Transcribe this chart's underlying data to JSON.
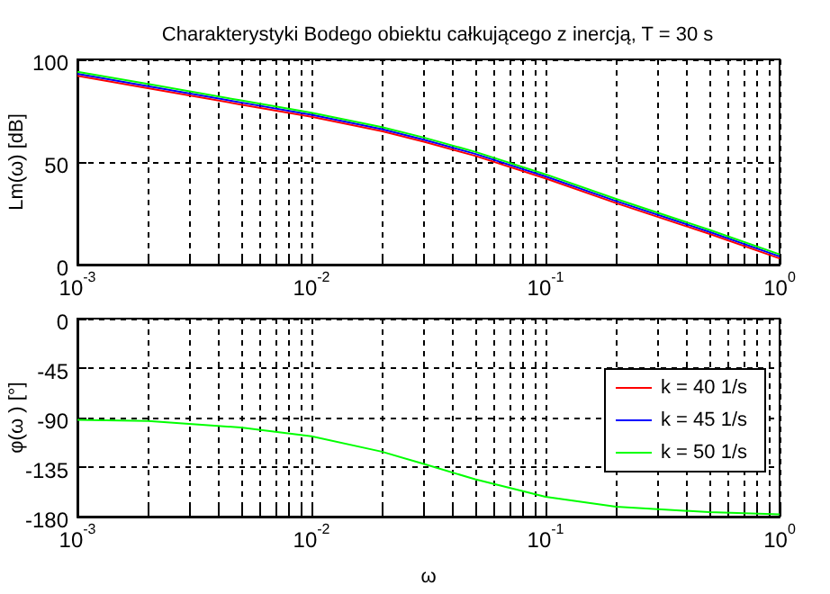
{
  "chart_data": [
    {
      "type": "line",
      "title": "Charakterystyki Bodego obiektu całkującego z inercją, T = 30 s",
      "ylabel": "Lm(ω) [dB]",
      "log": "x",
      "grid": true,
      "x": [
        0.001,
        0.002,
        0.005,
        0.01,
        0.02,
        0.03,
        0.05,
        0.1,
        0.2,
        0.5,
        1
      ],
      "xlim": [
        0.001,
        1
      ],
      "ylim": [
        0,
        100
      ],
      "xticks": [
        {
          "value": 0.001,
          "label": "10$^{-3}$"
        },
        {
          "value": 0.002,
          "label": null
        },
        {
          "value": 0.003,
          "label": null
        },
        {
          "value": 0.004,
          "label": null
        },
        {
          "value": 0.005,
          "label": null
        },
        {
          "value": 0.006,
          "label": null
        },
        {
          "value": 0.007,
          "label": null
        },
        {
          "value": 0.008,
          "label": null
        },
        {
          "value": 0.009,
          "label": null
        },
        {
          "value": 0.01,
          "label": "10$^{-2}$"
        },
        {
          "value": 0.02,
          "label": null
        },
        {
          "value": 0.03,
          "label": null
        },
        {
          "value": 0.04,
          "label": null
        },
        {
          "value": 0.05,
          "label": null
        },
        {
          "value": 0.06,
          "label": null
        },
        {
          "value": 0.07,
          "label": null
        },
        {
          "value": 0.08,
          "label": null
        },
        {
          "value": 0.09,
          "label": null
        },
        {
          "value": 0.1,
          "label": "10$^{-1}$"
        },
        {
          "value": 0.2,
          "label": null
        },
        {
          "value": 0.3,
          "label": null
        },
        {
          "value": 0.4,
          "label": null
        },
        {
          "value": 0.5,
          "label": null
        },
        {
          "value": 0.6,
          "label": null
        },
        {
          "value": 0.7,
          "label": null
        },
        {
          "value": 0.8,
          "label": null
        },
        {
          "value": 0.9,
          "label": null
        },
        {
          "value": 1,
          "label": "10$^{0}$"
        }
      ],
      "yticks": [
        0,
        50,
        100
      ],
      "series": [
        {
          "color": "#ff0000",
          "values": [
            92,
            86,
            78,
            72,
            65,
            60,
            53,
            42,
            30,
            15,
            3
          ]
        },
        {
          "color": "#0000ff",
          "values": [
            93,
            87,
            79,
            73,
            66,
            61,
            54,
            43,
            31,
            16,
            4
          ]
        },
        {
          "color": "#00ff00",
          "values": [
            94,
            88,
            80,
            74,
            67,
            62,
            55,
            44,
            32,
            17,
            5
          ]
        }
      ]
    },
    {
      "type": "line",
      "xlabel": "ω",
      "ylabel": "φ(ω ) [°]",
      "log": "x",
      "grid": true,
      "legend": "right",
      "x": [
        0.001,
        0.002,
        0.005,
        0.01,
        0.02,
        0.03,
        0.05,
        0.1,
        0.2,
        0.5,
        1
      ],
      "xlim": [
        0.001,
        1
      ],
      "ylim": [
        -180,
        0
      ],
      "xticks": [
        {
          "value": 0.001,
          "label": "10$^{-3}$"
        },
        {
          "value": 0.002,
          "label": null
        },
        {
          "value": 0.003,
          "label": null
        },
        {
          "value": 0.004,
          "label": null
        },
        {
          "value": 0.005,
          "label": null
        },
        {
          "value": 0.006,
          "label": null
        },
        {
          "value": 0.007,
          "label": null
        },
        {
          "value": 0.008,
          "label": null
        },
        {
          "value": 0.009,
          "label": null
        },
        {
          "value": 0.01,
          "label": "10$^{-2}$"
        },
        {
          "value": 0.02,
          "label": null
        },
        {
          "value": 0.03,
          "label": null
        },
        {
          "value": 0.04,
          "label": null
        },
        {
          "value": 0.05,
          "label": null
        },
        {
          "value": 0.06,
          "label": null
        },
        {
          "value": 0.07,
          "label": null
        },
        {
          "value": 0.08,
          "label": null
        },
        {
          "value": 0.09,
          "label": null
        },
        {
          "value": 0.1,
          "label": "10$^{-1}$"
        },
        {
          "value": 0.2,
          "label": null
        },
        {
          "value": 0.3,
          "label": null
        },
        {
          "value": 0.4,
          "label": null
        },
        {
          "value": 0.5,
          "label": null
        },
        {
          "value": 0.6,
          "label": null
        },
        {
          "value": 0.7,
          "label": null
        },
        {
          "value": 0.8,
          "label": null
        },
        {
          "value": 0.9,
          "label": null
        },
        {
          "value": 1,
          "label": "10$^{0}$"
        }
      ],
      "yticks": [
        -180,
        -135,
        -90,
        -45,
        0
      ],
      "series": [
        {
          "name": "k = 40 1/s",
          "color": "#ff0000",
          "values": [
            null,
            null,
            null,
            null,
            null,
            null,
            null,
            null,
            null,
            null,
            null
          ]
        },
        {
          "name": "k = 45 1/s",
          "color": "#0000ff",
          "values": [
            null,
            null,
            null,
            null,
            null,
            null,
            null,
            null,
            null,
            null,
            null
          ]
        },
        {
          "name": "k = 50 1/s",
          "color": "#00ff00",
          "values": [
            -92,
            -93,
            -99,
            -107,
            -121,
            -132,
            -146,
            -162,
            -171,
            -176,
            -178
          ]
        }
      ]
    }
  ]
}
